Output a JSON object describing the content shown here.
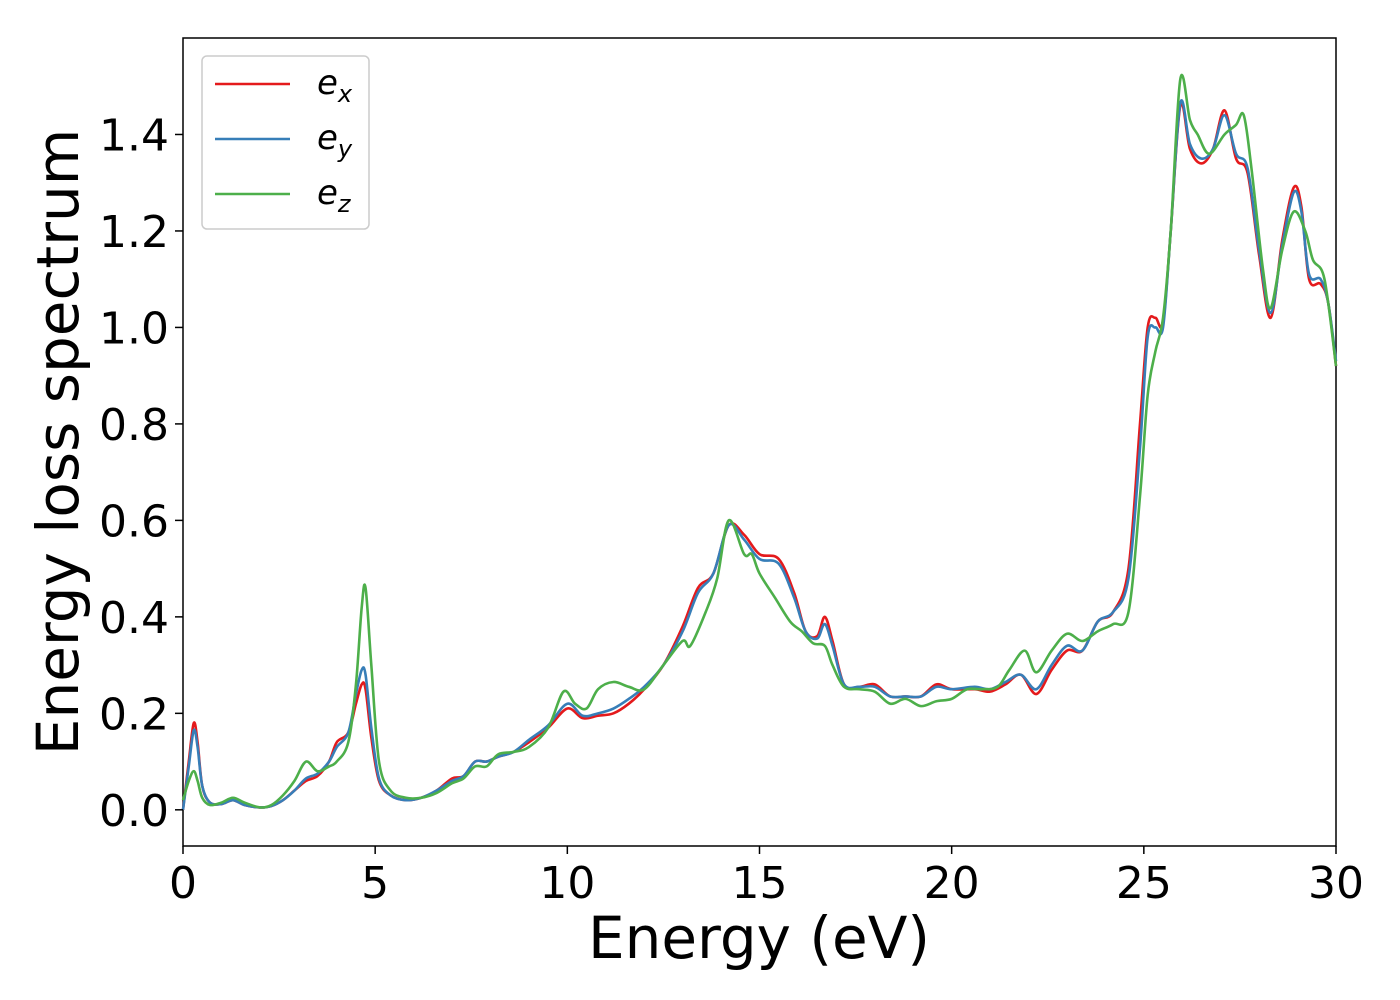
{
  "chart_data": {
    "type": "line",
    "xlabel": "Energy (eV)",
    "ylabel": "Energy loss spectrum",
    "xlim": [
      0,
      30
    ],
    "ylim": [
      -0.075,
      1.6
    ],
    "x_ticks": [
      0,
      5,
      10,
      15,
      20,
      25,
      30
    ],
    "x_tick_labels": [
      "0",
      "5",
      "10",
      "15",
      "20",
      "25",
      "30"
    ],
    "y_ticks": [
      0.0,
      0.2,
      0.4,
      0.6,
      0.8,
      1.0,
      1.2,
      1.4
    ],
    "y_tick_labels": [
      "0.0",
      "0.2",
      "0.4",
      "0.6",
      "0.8",
      "1.0",
      "1.2",
      "1.4"
    ],
    "grid": false,
    "legend_position": "top-left",
    "series": [
      {
        "name": "e",
        "subscript": "x",
        "color": "#e41a1c",
        "points": [
          [
            0,
            0.0
          ],
          [
            0.15,
            0.1
          ],
          [
            0.28,
            0.18
          ],
          [
            0.38,
            0.14
          ],
          [
            0.5,
            0.05
          ],
          [
            0.7,
            0.015
          ],
          [
            1.0,
            0.012
          ],
          [
            1.3,
            0.02
          ],
          [
            1.6,
            0.01
          ],
          [
            2.0,
            0.005
          ],
          [
            2.3,
            0.008
          ],
          [
            2.6,
            0.02
          ],
          [
            2.9,
            0.04
          ],
          [
            3.2,
            0.06
          ],
          [
            3.5,
            0.07
          ],
          [
            3.8,
            0.1
          ],
          [
            4.0,
            0.14
          ],
          [
            4.3,
            0.16
          ],
          [
            4.5,
            0.22
          ],
          [
            4.65,
            0.26
          ],
          [
            4.75,
            0.25
          ],
          [
            4.9,
            0.15
          ],
          [
            5.1,
            0.06
          ],
          [
            5.4,
            0.03
          ],
          [
            5.8,
            0.02
          ],
          [
            6.2,
            0.025
          ],
          [
            6.6,
            0.04
          ],
          [
            7.0,
            0.065
          ],
          [
            7.3,
            0.07
          ],
          [
            7.6,
            0.1
          ],
          [
            7.9,
            0.1
          ],
          [
            8.2,
            0.11
          ],
          [
            8.6,
            0.12
          ],
          [
            9.0,
            0.14
          ],
          [
            9.5,
            0.17
          ],
          [
            10.0,
            0.21
          ],
          [
            10.4,
            0.19
          ],
          [
            10.8,
            0.195
          ],
          [
            11.2,
            0.2
          ],
          [
            11.6,
            0.22
          ],
          [
            12.0,
            0.25
          ],
          [
            12.5,
            0.3
          ],
          [
            13.0,
            0.38
          ],
          [
            13.4,
            0.46
          ],
          [
            13.8,
            0.49
          ],
          [
            14.2,
            0.59
          ],
          [
            14.6,
            0.57
          ],
          [
            15.0,
            0.53
          ],
          [
            15.5,
            0.52
          ],
          [
            15.9,
            0.45
          ],
          [
            16.2,
            0.37
          ],
          [
            16.5,
            0.36
          ],
          [
            16.7,
            0.4
          ],
          [
            16.9,
            0.35
          ],
          [
            17.2,
            0.26
          ],
          [
            17.6,
            0.255
          ],
          [
            18.0,
            0.26
          ],
          [
            18.4,
            0.235
          ],
          [
            18.8,
            0.235
          ],
          [
            19.2,
            0.235
          ],
          [
            19.6,
            0.26
          ],
          [
            20.0,
            0.25
          ],
          [
            20.6,
            0.25
          ],
          [
            21.0,
            0.245
          ],
          [
            21.4,
            0.26
          ],
          [
            21.8,
            0.28
          ],
          [
            22.2,
            0.24
          ],
          [
            22.6,
            0.29
          ],
          [
            23.0,
            0.33
          ],
          [
            23.4,
            0.33
          ],
          [
            23.8,
            0.39
          ],
          [
            24.2,
            0.41
          ],
          [
            24.6,
            0.5
          ],
          [
            24.9,
            0.8
          ],
          [
            25.1,
            1.0
          ],
          [
            25.3,
            1.02
          ],
          [
            25.5,
            1.01
          ],
          [
            25.7,
            1.2
          ],
          [
            25.95,
            1.46
          ],
          [
            26.2,
            1.37
          ],
          [
            26.5,
            1.34
          ],
          [
            26.8,
            1.37
          ],
          [
            27.1,
            1.45
          ],
          [
            27.4,
            1.35
          ],
          [
            27.7,
            1.32
          ],
          [
            28.0,
            1.15
          ],
          [
            28.3,
            1.02
          ],
          [
            28.6,
            1.18
          ],
          [
            28.9,
            1.29
          ],
          [
            29.1,
            1.25
          ],
          [
            29.3,
            1.1
          ],
          [
            29.6,
            1.09
          ],
          [
            29.8,
            1.05
          ],
          [
            30.0,
            0.92
          ]
        ]
      },
      {
        "name": "e",
        "subscript": "y",
        "color": "#377eb8",
        "points": [
          [
            0,
            0.0
          ],
          [
            0.15,
            0.09
          ],
          [
            0.28,
            0.165
          ],
          [
            0.38,
            0.13
          ],
          [
            0.5,
            0.05
          ],
          [
            0.7,
            0.015
          ],
          [
            1.0,
            0.012
          ],
          [
            1.3,
            0.02
          ],
          [
            1.6,
            0.01
          ],
          [
            2.0,
            0.005
          ],
          [
            2.3,
            0.008
          ],
          [
            2.6,
            0.02
          ],
          [
            2.9,
            0.04
          ],
          [
            3.2,
            0.065
          ],
          [
            3.5,
            0.075
          ],
          [
            3.8,
            0.1
          ],
          [
            4.0,
            0.13
          ],
          [
            4.3,
            0.16
          ],
          [
            4.5,
            0.24
          ],
          [
            4.65,
            0.29
          ],
          [
            4.75,
            0.28
          ],
          [
            4.9,
            0.17
          ],
          [
            5.1,
            0.065
          ],
          [
            5.4,
            0.03
          ],
          [
            5.8,
            0.02
          ],
          [
            6.2,
            0.025
          ],
          [
            6.6,
            0.04
          ],
          [
            7.0,
            0.06
          ],
          [
            7.3,
            0.07
          ],
          [
            7.6,
            0.1
          ],
          [
            7.9,
            0.1
          ],
          [
            8.2,
            0.11
          ],
          [
            8.6,
            0.12
          ],
          [
            9.0,
            0.145
          ],
          [
            9.5,
            0.175
          ],
          [
            10.0,
            0.22
          ],
          [
            10.4,
            0.195
          ],
          [
            10.8,
            0.2
          ],
          [
            11.2,
            0.21
          ],
          [
            11.6,
            0.23
          ],
          [
            12.0,
            0.255
          ],
          [
            12.5,
            0.3
          ],
          [
            13.0,
            0.37
          ],
          [
            13.4,
            0.45
          ],
          [
            13.8,
            0.49
          ],
          [
            14.2,
            0.59
          ],
          [
            14.6,
            0.56
          ],
          [
            15.0,
            0.52
          ],
          [
            15.5,
            0.51
          ],
          [
            15.9,
            0.44
          ],
          [
            16.2,
            0.37
          ],
          [
            16.5,
            0.355
          ],
          [
            16.7,
            0.385
          ],
          [
            16.9,
            0.34
          ],
          [
            17.2,
            0.26
          ],
          [
            17.6,
            0.255
          ],
          [
            18.0,
            0.255
          ],
          [
            18.4,
            0.235
          ],
          [
            18.8,
            0.235
          ],
          [
            19.2,
            0.235
          ],
          [
            19.6,
            0.255
          ],
          [
            20.0,
            0.25
          ],
          [
            20.6,
            0.255
          ],
          [
            21.0,
            0.25
          ],
          [
            21.4,
            0.265
          ],
          [
            21.8,
            0.28
          ],
          [
            22.2,
            0.25
          ],
          [
            22.6,
            0.3
          ],
          [
            23.0,
            0.34
          ],
          [
            23.4,
            0.33
          ],
          [
            23.8,
            0.39
          ],
          [
            24.2,
            0.41
          ],
          [
            24.6,
            0.48
          ],
          [
            24.9,
            0.75
          ],
          [
            25.1,
            0.98
          ],
          [
            25.3,
            1.0
          ],
          [
            25.5,
            1.0
          ],
          [
            25.7,
            1.2
          ],
          [
            25.95,
            1.465
          ],
          [
            26.2,
            1.38
          ],
          [
            26.5,
            1.35
          ],
          [
            26.8,
            1.37
          ],
          [
            27.1,
            1.44
          ],
          [
            27.4,
            1.36
          ],
          [
            27.7,
            1.33
          ],
          [
            28.0,
            1.16
          ],
          [
            28.3,
            1.03
          ],
          [
            28.6,
            1.17
          ],
          [
            28.9,
            1.28
          ],
          [
            29.1,
            1.24
          ],
          [
            29.3,
            1.11
          ],
          [
            29.6,
            1.1
          ],
          [
            29.8,
            1.05
          ],
          [
            30.0,
            0.93
          ]
        ]
      },
      {
        "name": "e",
        "subscript": "z",
        "color": "#4daf4a",
        "points": [
          [
            0,
            0.02
          ],
          [
            0.15,
            0.06
          ],
          [
            0.28,
            0.08
          ],
          [
            0.38,
            0.06
          ],
          [
            0.5,
            0.025
          ],
          [
            0.7,
            0.01
          ],
          [
            1.0,
            0.015
          ],
          [
            1.3,
            0.025
          ],
          [
            1.6,
            0.015
          ],
          [
            2.0,
            0.005
          ],
          [
            2.3,
            0.01
          ],
          [
            2.6,
            0.03
          ],
          [
            2.9,
            0.06
          ],
          [
            3.2,
            0.1
          ],
          [
            3.5,
            0.08
          ],
          [
            3.8,
            0.09
          ],
          [
            4.0,
            0.1
          ],
          [
            4.3,
            0.14
          ],
          [
            4.5,
            0.26
          ],
          [
            4.65,
            0.42
          ],
          [
            4.75,
            0.46
          ],
          [
            4.9,
            0.3
          ],
          [
            5.1,
            0.1
          ],
          [
            5.4,
            0.04
          ],
          [
            5.8,
            0.025
          ],
          [
            6.2,
            0.025
          ],
          [
            6.6,
            0.035
          ],
          [
            7.0,
            0.055
          ],
          [
            7.3,
            0.065
          ],
          [
            7.6,
            0.09
          ],
          [
            7.9,
            0.09
          ],
          [
            8.2,
            0.115
          ],
          [
            8.6,
            0.12
          ],
          [
            9.0,
            0.13
          ],
          [
            9.5,
            0.17
          ],
          [
            9.9,
            0.245
          ],
          [
            10.2,
            0.22
          ],
          [
            10.5,
            0.21
          ],
          [
            10.8,
            0.25
          ],
          [
            11.2,
            0.265
          ],
          [
            11.6,
            0.255
          ],
          [
            12.0,
            0.25
          ],
          [
            12.5,
            0.3
          ],
          [
            13.0,
            0.35
          ],
          [
            13.2,
            0.34
          ],
          [
            13.6,
            0.41
          ],
          [
            13.9,
            0.48
          ],
          [
            14.2,
            0.6
          ],
          [
            14.6,
            0.53
          ],
          [
            14.8,
            0.53
          ],
          [
            15.0,
            0.49
          ],
          [
            15.4,
            0.44
          ],
          [
            15.8,
            0.39
          ],
          [
            16.1,
            0.37
          ],
          [
            16.4,
            0.345
          ],
          [
            16.7,
            0.34
          ],
          [
            16.9,
            0.3
          ],
          [
            17.2,
            0.255
          ],
          [
            17.6,
            0.25
          ],
          [
            18.0,
            0.245
          ],
          [
            18.4,
            0.22
          ],
          [
            18.8,
            0.23
          ],
          [
            19.2,
            0.215
          ],
          [
            19.6,
            0.225
          ],
          [
            20.0,
            0.23
          ],
          [
            20.4,
            0.25
          ],
          [
            20.8,
            0.25
          ],
          [
            21.2,
            0.255
          ],
          [
            21.5,
            0.29
          ],
          [
            21.9,
            0.33
          ],
          [
            22.2,
            0.285
          ],
          [
            22.6,
            0.33
          ],
          [
            23.0,
            0.365
          ],
          [
            23.4,
            0.35
          ],
          [
            23.8,
            0.37
          ],
          [
            24.2,
            0.385
          ],
          [
            24.6,
            0.41
          ],
          [
            24.9,
            0.65
          ],
          [
            25.1,
            0.86
          ],
          [
            25.3,
            0.95
          ],
          [
            25.5,
            1.02
          ],
          [
            25.7,
            1.2
          ],
          [
            25.95,
            1.515
          ],
          [
            26.2,
            1.43
          ],
          [
            26.4,
            1.4
          ],
          [
            26.7,
            1.36
          ],
          [
            27.1,
            1.4
          ],
          [
            27.4,
            1.42
          ],
          [
            27.6,
            1.44
          ],
          [
            27.8,
            1.33
          ],
          [
            28.1,
            1.12
          ],
          [
            28.3,
            1.04
          ],
          [
            28.6,
            1.16
          ],
          [
            28.9,
            1.24
          ],
          [
            29.2,
            1.2
          ],
          [
            29.4,
            1.14
          ],
          [
            29.7,
            1.1
          ],
          [
            30.0,
            0.92
          ]
        ]
      }
    ]
  }
}
